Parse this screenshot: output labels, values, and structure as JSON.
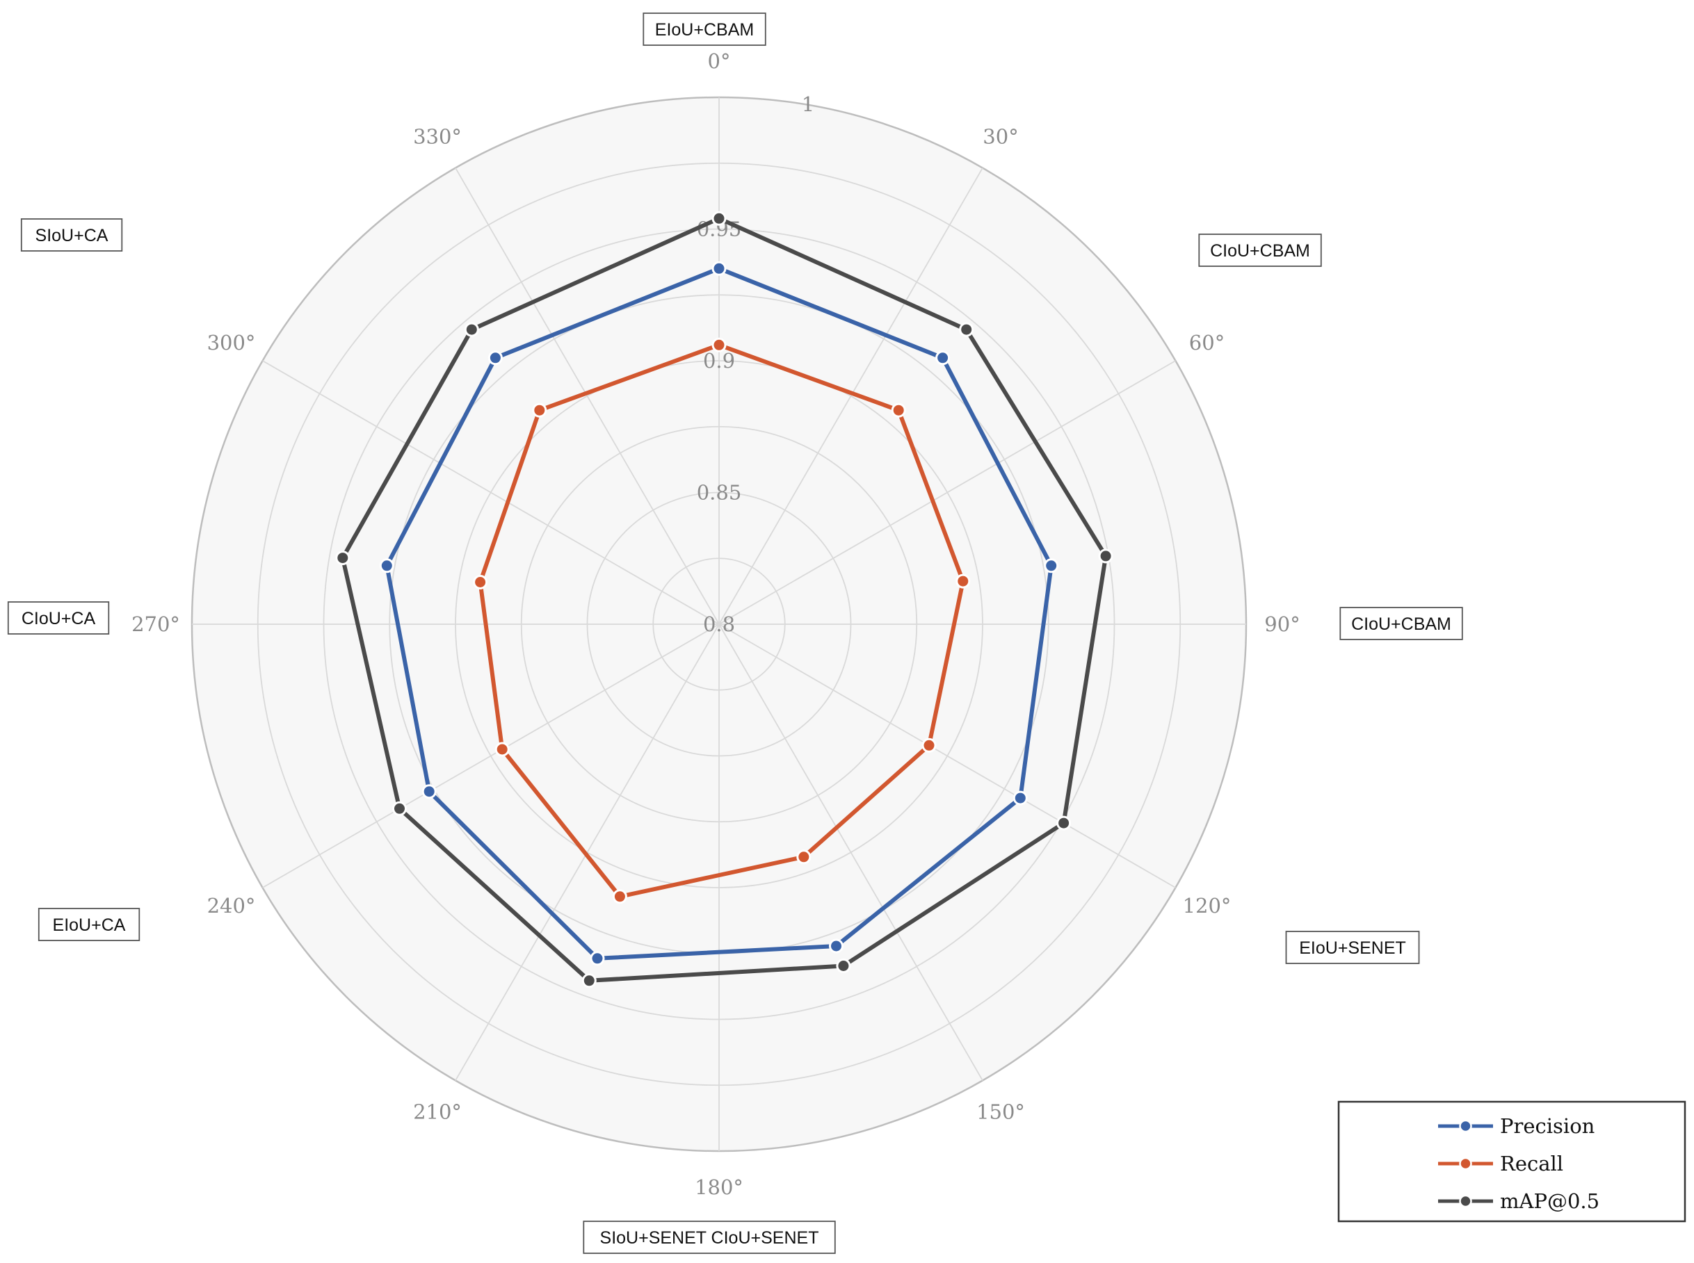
{
  "chart_data": {
    "type": "radar",
    "radial_range": [
      0.8,
      1
    ],
    "radial_ticks": [
      "0.8",
      "0.85",
      "0.9",
      "0.95",
      "1"
    ],
    "angular_ticks": [
      "0°",
      "30°",
      "60°",
      "90°",
      "120°",
      "150°",
      "180°",
      "210°",
      "240°",
      "270°",
      "300°",
      "330°"
    ],
    "grid": true,
    "legend_position": "bottom-right",
    "categories": [
      "EIoU+CBAM",
      "CIoU+CBAM",
      "CIoU+CBAM",
      "EIoU+SENET",
      "CIoU+SENET",
      "SIoU+SENET",
      "EIoU+CA",
      "CIoU+CA",
      "SIoU+CA"
    ],
    "category_labels": [
      "EIoU+CBAM",
      "CIoU+CBAM",
      "CIoU+CBAM",
      "EIoU+SENET",
      "SIoU+SENET CIoU+SENET",
      "EIoU+CA",
      "CIoU+CA",
      "SIoU+CA"
    ],
    "series": [
      {
        "name": "Precision",
        "color": "#3a63a8",
        "values": [
          0.935,
          0.932,
          0.928,
          0.932,
          0.93,
          0.935,
          0.927,
          0.928,
          0.932
        ]
      },
      {
        "name": "Recall",
        "color": "#d2572f",
        "values": [
          0.906,
          0.906,
          0.894,
          0.892,
          0.894,
          0.91,
          0.895,
          0.892,
          0.906
        ]
      },
      {
        "name": "mAP@0.5",
        "color": "#4a4a4a",
        "values": [
          0.954,
          0.946,
          0.949,
          0.951,
          0.938,
          0.944,
          0.94,
          0.945,
          0.946
        ]
      }
    ]
  }
}
